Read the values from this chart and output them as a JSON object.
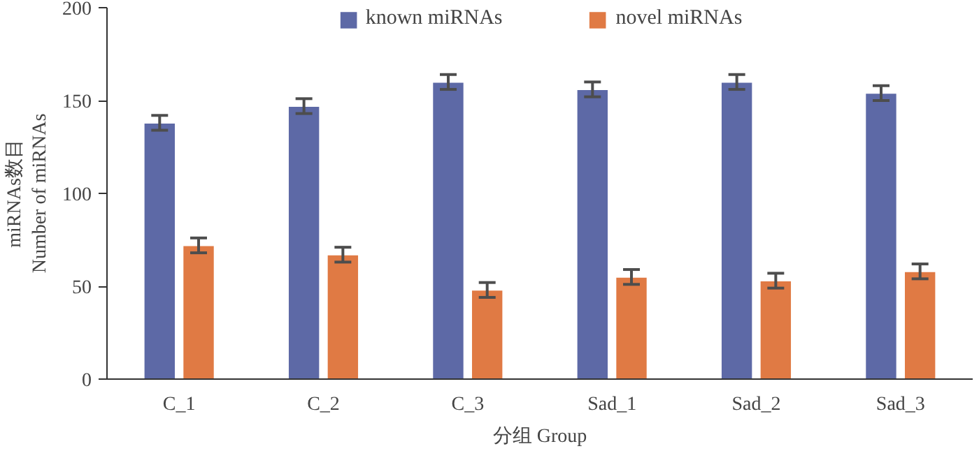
{
  "chart_data": {
    "type": "bar",
    "xlabel": "分组 Group",
    "ylabel": "miRNAs数目\nNumber of miRNAs",
    "categories": [
      "C_1",
      "C_2",
      "C_3",
      "Sad_1",
      "Sad_2",
      "Sad_3"
    ],
    "series": [
      {
        "name": "known miRNAs",
        "color": "#5d69a6",
        "values": [
          138,
          147,
          160,
          156,
          160,
          154
        ],
        "errors": [
          4,
          4,
          4,
          4,
          4,
          4
        ]
      },
      {
        "name": "novel miRNAs",
        "color": "#e07a44",
        "values": [
          72,
          67,
          48,
          55,
          53,
          58
        ],
        "errors": [
          4,
          4,
          4,
          4,
          4,
          4
        ]
      }
    ],
    "ylim": [
      0,
      200
    ],
    "yticks": [
      0,
      50,
      100,
      150,
      200
    ],
    "grid": false,
    "legend": "top"
  }
}
